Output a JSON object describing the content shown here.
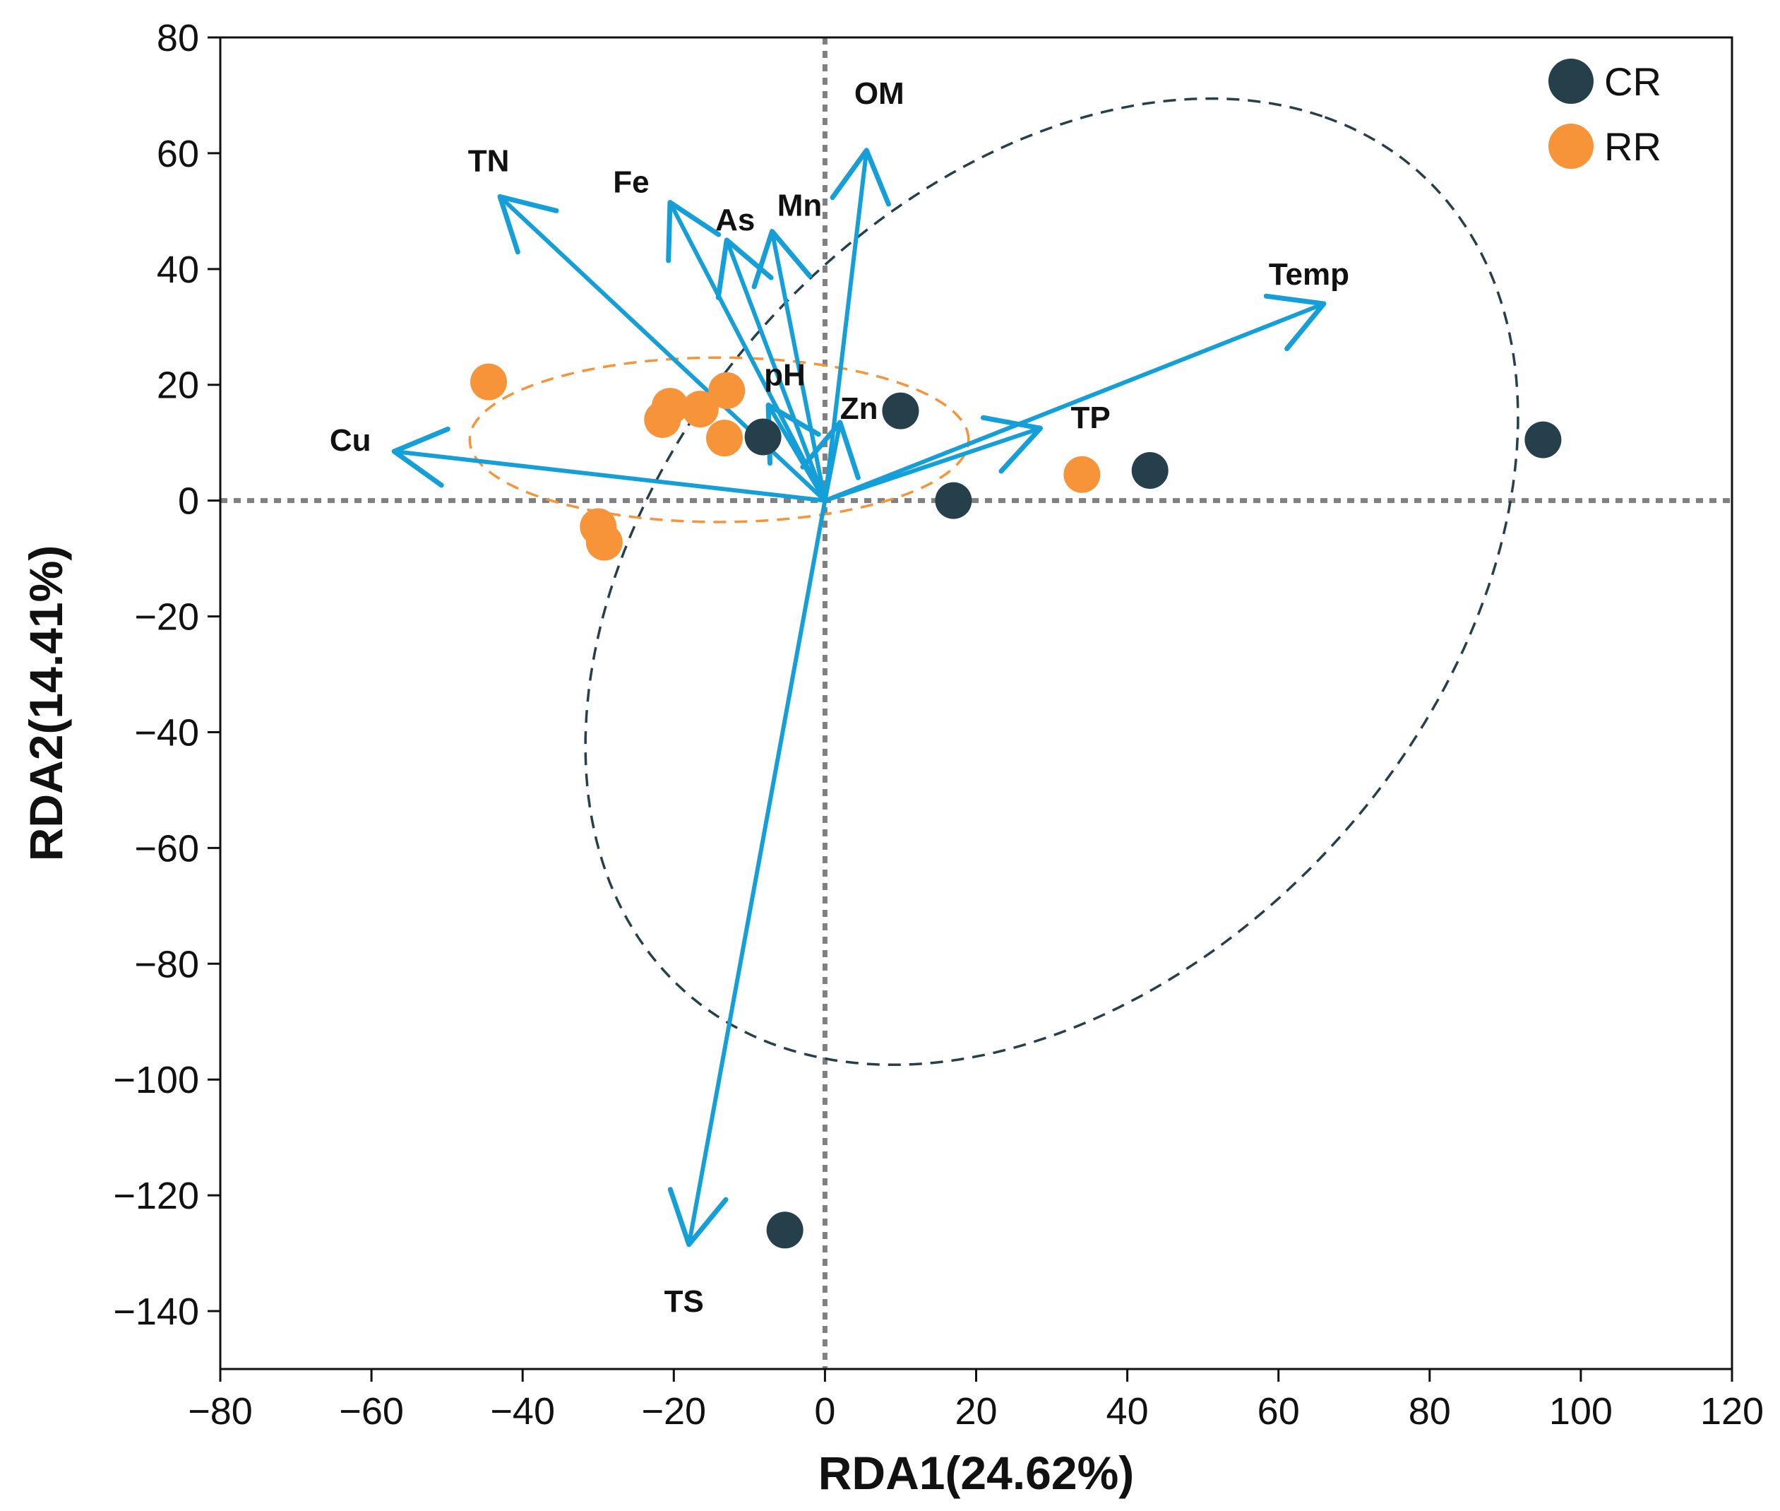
{
  "chart_data": {
    "type": "scatter",
    "subtype": "rda-biplot",
    "xlabel": "RDA1(24.62%)",
    "ylabel": "RDA2(14.41%)",
    "xlim": [
      -80,
      120
    ],
    "ylim": [
      -150,
      80
    ],
    "xticks": [
      -80,
      -60,
      -40,
      -20,
      0,
      20,
      40,
      60,
      80,
      100,
      120
    ],
    "yticks": [
      80,
      60,
      40,
      20,
      0,
      -20,
      -40,
      -60,
      -80,
      -100,
      -120,
      -140
    ],
    "xtick_labels": [
      "−80",
      "−60",
      "−40",
      "−20",
      "0",
      "20",
      "40",
      "60",
      "80",
      "100",
      "120"
    ],
    "ytick_labels": [
      "80",
      "60",
      "40",
      "20",
      "0",
      "−20",
      "−40",
      "−60",
      "−80",
      "−100",
      "−120",
      "−140"
    ],
    "legend_position": "top-right",
    "series": [
      {
        "name": "CR",
        "color": "#253f4b",
        "points": [
          [
            10,
            15.5
          ],
          [
            17,
            0
          ],
          [
            43,
            5.2
          ],
          [
            95,
            10.5
          ],
          [
            -8.2,
            11
          ],
          [
            -5.3,
            -126
          ]
        ]
      },
      {
        "name": "RR",
        "color": "#f7943a",
        "points": [
          [
            -44.5,
            20.5
          ],
          [
            -20.5,
            16.3
          ],
          [
            -16.5,
            15.8
          ],
          [
            -21.5,
            14
          ],
          [
            -13,
            19
          ],
          [
            -13.3,
            10.8
          ],
          [
            -30,
            -4.5
          ],
          [
            -29.2,
            -7.2
          ],
          [
            34,
            4.5
          ]
        ]
      }
    ],
    "vectors": [
      {
        "name": "Cu",
        "x": -57,
        "y": 8.5
      },
      {
        "name": "TN",
        "x": -43,
        "y": 52.5
      },
      {
        "name": "Fe",
        "x": -20.5,
        "y": 51.5
      },
      {
        "name": "As",
        "x": -13,
        "y": 45
      },
      {
        "name": "Mn",
        "x": -7,
        "y": 46.5
      },
      {
        "name": "OM",
        "x": 5.5,
        "y": 60.5
      },
      {
        "name": "pH",
        "x": -7.5,
        "y": 16.5
      },
      {
        "name": "Zn",
        "x": 2,
        "y": 13.5
      },
      {
        "name": "TP",
        "x": 28.5,
        "y": 12.5
      },
      {
        "name": "Temp",
        "x": 66,
        "y": 34
      },
      {
        "name": "TS",
        "x": -18,
        "y": -128.5
      }
    ],
    "vector_color": "#149fd8",
    "ellipses": [
      {
        "group": "CR",
        "color": "#253f4b",
        "center": [
          30,
          -14
        ],
        "semi_axes": [
          88,
          55
        ],
        "angle_deg": 66
      },
      {
        "group": "RR",
        "color": "#f7943a",
        "center": [
          -14,
          10.5
        ],
        "semi_axes": [
          33,
          14.2
        ],
        "angle_deg": 0
      }
    ],
    "reference_lines": {
      "x": 0,
      "y": 0,
      "style": "dotted",
      "color": "#808080"
    }
  }
}
